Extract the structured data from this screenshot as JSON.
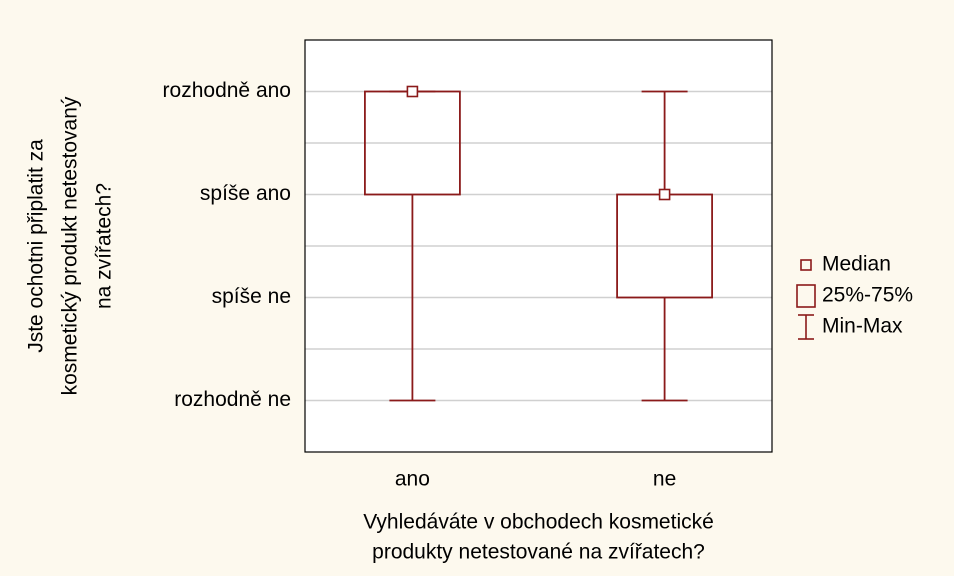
{
  "chart_data": {
    "type": "box",
    "ylabel": [
      "Jste ochotni připlatit za",
      "kosmetický produkt netestovaný",
      "na zvířatech?"
    ],
    "xlabel": [
      "Vyhledáváte v obchodech kosmetické",
      "produkty netestované na zvířatech?"
    ],
    "categories": [
      "ano",
      "ne"
    ],
    "series": [
      {
        "color": "#8b1a1a",
        "min": [
          1,
          1
        ],
        "q1": [
          3,
          2
        ],
        "median": [
          4,
          3
        ],
        "q3": [
          4,
          3
        ],
        "max": [
          4,
          4
        ]
      }
    ],
    "ylim": [
      0.5,
      4.5
    ],
    "yticks": [
      {
        "value": 1,
        "label": "rozhodně ne"
      },
      {
        "value": 2,
        "label": "spíše ne"
      },
      {
        "value": 3,
        "label": "spíše ano"
      },
      {
        "value": 4,
        "label": "rozhodně ano"
      }
    ],
    "minor_yticks": [
      1.5,
      2.5,
      3.5
    ],
    "grid": true,
    "legend": {
      "position": "right",
      "entries": [
        "Median",
        "25%-75%",
        "Min-Max"
      ]
    }
  }
}
